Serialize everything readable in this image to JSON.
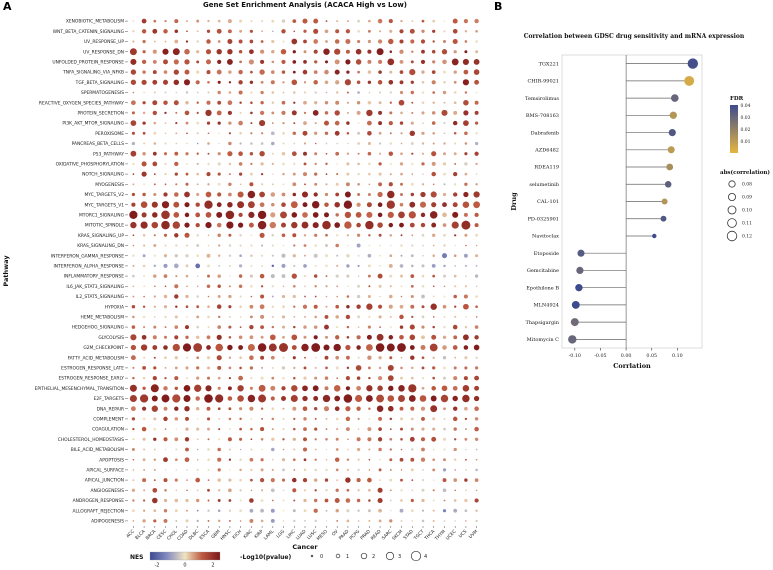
{
  "figure": {
    "panel_a_label": "A",
    "panel_b_label": "B"
  },
  "chart_data": [
    {
      "type": "bubble-matrix",
      "title": "Gene Set Enrichment Analysis (ACACA High vs Low)",
      "xlabel": "Cancer",
      "ylabel": "Pathway",
      "seed": 7,
      "color_scale": {
        "label": "NES",
        "domain": [
          -2.5,
          2.5
        ],
        "ticks": [
          -2,
          0,
          2
        ],
        "stops": [
          [
            -2.5,
            "#3b4992"
          ],
          [
            -1.2,
            "#8a90c3"
          ],
          [
            0,
            "#f0e3c2"
          ],
          [
            1.2,
            "#bd5b42"
          ],
          [
            2.5,
            "#7c1719"
          ]
        ]
      },
      "size_scale": {
        "label": "-Log10(pvalue)",
        "ticks": [
          0,
          1,
          2,
          3,
          4
        ]
      },
      "x_categories": [
        {
          "name": "ACC",
          "bias": 0
        },
        {
          "name": "BLCA",
          "bias": 0.1
        },
        {
          "name": "BRCA",
          "bias": 0.1
        },
        {
          "name": "CESC",
          "bias": 0.1
        },
        {
          "name": "CHOL",
          "bias": 0.2
        },
        {
          "name": "COAD",
          "bias": 0.2
        },
        {
          "name": "DLBC",
          "bias": -0.6
        },
        {
          "name": "ESCA",
          "bias": 0.2
        },
        {
          "name": "GBM",
          "bias": 0
        },
        {
          "name": "HNSC",
          "bias": 0.1
        },
        {
          "name": "KICH",
          "bias": -0.2
        },
        {
          "name": "KIRC",
          "bias": 0
        },
        {
          "name": "KIRP",
          "bias": 0
        },
        {
          "name": "LAML",
          "bias": -0.8
        },
        {
          "name": "LGG",
          "bias": -0.3
        },
        {
          "name": "LIHC",
          "bias": 0.3
        },
        {
          "name": "LUAD",
          "bias": 0.1
        },
        {
          "name": "LUSC",
          "bias": 0.2
        },
        {
          "name": "MESO",
          "bias": 0.1
        },
        {
          "name": "OV",
          "bias": 0.1
        },
        {
          "name": "PAAD",
          "bias": 0.2
        },
        {
          "name": "PCPG",
          "bias": -0.2
        },
        {
          "name": "PRAD",
          "bias": 0
        },
        {
          "name": "READ",
          "bias": 0.2
        },
        {
          "name": "SARC",
          "bias": 0.1
        },
        {
          "name": "SKCM",
          "bias": 0
        },
        {
          "name": "STAD",
          "bias": 0.2
        },
        {
          "name": "TGCT",
          "bias": -0.3
        },
        {
          "name": "THCA",
          "bias": 0
        },
        {
          "name": "THYM",
          "bias": -0.5
        },
        {
          "name": "UCEC",
          "bias": 0.1
        },
        {
          "name": "UCS",
          "bias": 0.1
        },
        {
          "name": "UVM",
          "bias": -0.2
        }
      ],
      "y_categories": [
        {
          "name": "XENOBIOTIC_METABOLISM",
          "mean_nes": 0.8,
          "mean_logp": 1.3
        },
        {
          "name": "WNT_BETA_CATENIN_SIGNALING",
          "mean_nes": 0.9,
          "mean_logp": 1.0
        },
        {
          "name": "UV_RESPONSE_UP",
          "mean_nes": 1.0,
          "mean_logp": 1.5
        },
        {
          "name": "UV_RESPONSE_DN",
          "mean_nes": 1.4,
          "mean_logp": 1.8
        },
        {
          "name": "UNFOLDED_PROTEIN_RESPONSE",
          "mean_nes": 1.5,
          "mean_logp": 2.0
        },
        {
          "name": "TNFA_SIGNALING_VIA_NFKB",
          "mean_nes": 1.2,
          "mean_logp": 1.8
        },
        {
          "name": "TGF_BETA_SIGNALING",
          "mean_nes": 1.4,
          "mean_logp": 1.6
        },
        {
          "name": "SPERMATOGENESIS",
          "mean_nes": 0.3,
          "mean_logp": 0.8
        },
        {
          "name": "REACTIVE_OXYGEN_SPECIES_PATHWAY",
          "mean_nes": 1.0,
          "mean_logp": 1.4
        },
        {
          "name": "PROTEIN_SECRETION",
          "mean_nes": 1.2,
          "mean_logp": 1.5
        },
        {
          "name": "PI3K_AKT_MTOR_SIGNALING",
          "mean_nes": 1.1,
          "mean_logp": 1.4
        },
        {
          "name": "PEROXISOME",
          "mean_nes": 0.8,
          "mean_logp": 1.1
        },
        {
          "name": "PANCREAS_BETA_CELLS",
          "mean_nes": 0.2,
          "mean_logp": 0.6
        },
        {
          "name": "P53_PATHWAY",
          "mean_nes": 1.0,
          "mean_logp": 1.4
        },
        {
          "name": "OXIDATIVE_PHOSPHORYLATION",
          "mean_nes": 0.5,
          "mean_logp": 1.3
        },
        {
          "name": "NOTCH_SIGNALING",
          "mean_nes": 0.9,
          "mean_logp": 1.0
        },
        {
          "name": "MYOGENESIS",
          "mean_nes": 0.5,
          "mean_logp": 1.0
        },
        {
          "name": "MYC_TARGETS_V2",
          "mean_nes": 1.6,
          "mean_logp": 2.2
        },
        {
          "name": "MYC_TARGETS_V1",
          "mean_nes": 1.8,
          "mean_logp": 2.6
        },
        {
          "name": "MTORC1_SIGNALING",
          "mean_nes": 1.8,
          "mean_logp": 2.6
        },
        {
          "name": "MITOTIC_SPINDLE",
          "mean_nes": 1.9,
          "mean_logp": 2.8
        },
        {
          "name": "KRAS_SIGNALING_UP",
          "mean_nes": 0.9,
          "mean_logp": 1.2
        },
        {
          "name": "KRAS_SIGNALING_DN",
          "mean_nes": 0.1,
          "mean_logp": 0.8
        },
        {
          "name": "INTERFERON_GAMMA_RESPONSE",
          "mean_nes": -0.2,
          "mean_logp": 1.5
        },
        {
          "name": "INTERFERON_ALPHA_RESPONSE",
          "mean_nes": -0.3,
          "mean_logp": 1.5
        },
        {
          "name": "INFLAMMATORY_RESPONSE",
          "mean_nes": 0.4,
          "mean_logp": 1.2
        },
        {
          "name": "IL6_JAK_STAT3_SIGNALING",
          "mean_nes": 0.6,
          "mean_logp": 1.0
        },
        {
          "name": "IL2_STAT5_SIGNALING",
          "mean_nes": 0.7,
          "mean_logp": 1.0
        },
        {
          "name": "HYPOXIA",
          "mean_nes": 1.2,
          "mean_logp": 1.6
        },
        {
          "name": "HEME_METABOLISM",
          "mean_nes": 0.6,
          "mean_logp": 1.0
        },
        {
          "name": "HEDGEHOG_SIGNALING",
          "mean_nes": 0.9,
          "mean_logp": 1.0
        },
        {
          "name": "GLYCOLYSIS",
          "mean_nes": 1.4,
          "mean_logp": 1.8
        },
        {
          "name": "G2M_CHECKPOINT",
          "mean_nes": 1.9,
          "mean_logp": 2.8
        },
        {
          "name": "FATTY_ACID_METABOLISM",
          "mean_nes": 0.8,
          "mean_logp": 1.4
        },
        {
          "name": "ESTROGEN_RESPONSE_LATE",
          "mean_nes": 0.9,
          "mean_logp": 1.4
        },
        {
          "name": "ESTROGEN_RESPONSE_EARLY",
          "mean_nes": 1.0,
          "mean_logp": 1.4
        },
        {
          "name": "EPITHELIAL_MESENCHYMAL_TRANSITION",
          "mean_nes": 1.7,
          "mean_logp": 2.4
        },
        {
          "name": "E2F_TARGETS",
          "mean_nes": 2.0,
          "mean_logp": 3.0
        },
        {
          "name": "DNA_REPAIR",
          "mean_nes": 1.3,
          "mean_logp": 1.8
        },
        {
          "name": "COMPLEMENT",
          "mean_nes": 0.8,
          "mean_logp": 1.2
        },
        {
          "name": "COAGULATION",
          "mean_nes": 0.7,
          "mean_logp": 1.1
        },
        {
          "name": "CHOLESTEROL_HOMEOSTASIS",
          "mean_nes": 1.0,
          "mean_logp": 1.3
        },
        {
          "name": "BILE_ACID_METABOLISM",
          "mean_nes": 0.3,
          "mean_logp": 0.8
        },
        {
          "name": "APOPTOSIS",
          "mean_nes": 0.9,
          "mean_logp": 1.2
        },
        {
          "name": "APICAL_SURFACE",
          "mean_nes": 0.4,
          "mean_logp": 0.7
        },
        {
          "name": "APICAL_JUNCTION",
          "mean_nes": 0.9,
          "mean_logp": 1.2
        },
        {
          "name": "ANGIOGENESIS",
          "mean_nes": 0.8,
          "mean_logp": 1.0
        },
        {
          "name": "ANDROGEN_RESPONSE",
          "mean_nes": 0.9,
          "mean_logp": 1.2
        },
        {
          "name": "ALLOGRAFT_REJECTION",
          "mean_nes": 0.0,
          "mean_logp": 1.3
        },
        {
          "name": "ADIPOGENESIS",
          "mean_nes": 0.3,
          "mean_logp": 1.0
        }
      ]
    },
    {
      "type": "lollipop",
      "title": "Correlation between GDSC drug sensitivity and mRNA expression",
      "xlabel": "Corrlation",
      "ylabel": "Drug",
      "x_domain": [
        -0.125,
        0.148
      ],
      "x_ticks": [
        -0.1,
        -0.05,
        0.0,
        0.05,
        0.1
      ],
      "fdr_scale": {
        "label": "FDR",
        "max": 0.04,
        "ticks": [
          0.04,
          0.03,
          0.02,
          0.01
        ],
        "low_color": "#e6b63f",
        "high_color": "#3d4b8e"
      },
      "size_scale": {
        "label": "abs(correlation)",
        "ticks": [
          0.08,
          0.09,
          0.1,
          0.11,
          0.12
        ]
      },
      "points": [
        {
          "drug": "TGX221",
          "correlation": 0.13,
          "fdr": 0.038
        },
        {
          "drug": "CHIR-99021",
          "correlation": 0.123,
          "fdr": 0.004
        },
        {
          "drug": "Temsirolimus",
          "correlation": 0.095,
          "fdr": 0.03
        },
        {
          "drug": "BMS-708163",
          "correlation": 0.092,
          "fdr": 0.012
        },
        {
          "drug": "Dabrafenib",
          "correlation": 0.09,
          "fdr": 0.035
        },
        {
          "drug": "AZD6482",
          "correlation": 0.088,
          "fdr": 0.01
        },
        {
          "drug": "RDEA119",
          "correlation": 0.085,
          "fdr": 0.015
        },
        {
          "drug": "selumetinib",
          "correlation": 0.082,
          "fdr": 0.032
        },
        {
          "drug": "CAL-101",
          "correlation": 0.075,
          "fdr": 0.012
        },
        {
          "drug": "PD-0325901",
          "correlation": 0.073,
          "fdr": 0.035
        },
        {
          "drug": "Navitoclax",
          "correlation": 0.055,
          "fdr": 0.04
        },
        {
          "drug": "Etoposide",
          "correlation": -0.088,
          "fdr": 0.034
        },
        {
          "drug": "Gemcitabine",
          "correlation": -0.09,
          "fdr": 0.03
        },
        {
          "drug": "Epothilone B",
          "correlation": -0.092,
          "fdr": 0.04
        },
        {
          "drug": "MLN4924",
          "correlation": -0.098,
          "fdr": 0.04
        },
        {
          "drug": "Thapsigargin",
          "correlation": -0.1,
          "fdr": 0.028
        },
        {
          "drug": "Mitomycin C",
          "correlation": -0.105,
          "fdr": 0.03
        }
      ]
    }
  ]
}
